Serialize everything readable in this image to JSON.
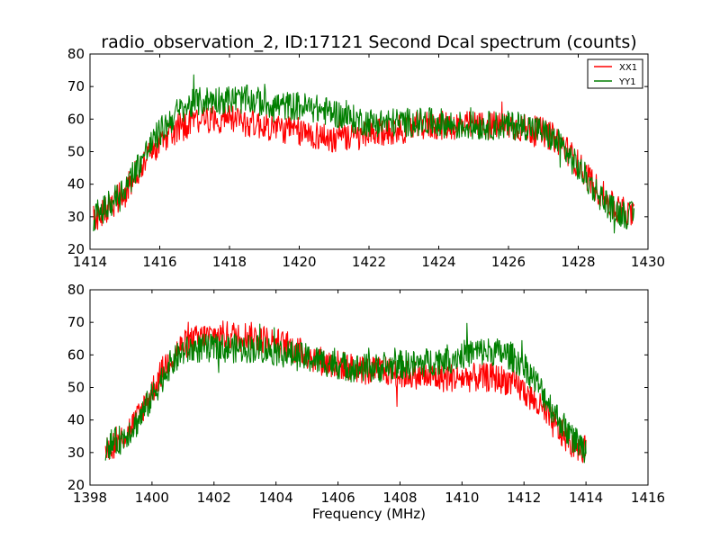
{
  "figure": {
    "title": "radio_observation_2, ID:17121 Second Dcal spectrum (counts)"
  },
  "legend": {
    "placement": "upper-right",
    "entries": [
      "XX1",
      "YY1"
    ]
  },
  "colors": {
    "XX1": "#ff0000",
    "YY1": "#007f00"
  },
  "chart_data": [
    {
      "type": "line",
      "title": "radio_observation_2, ID:17121 Second Dcal spectrum (counts)",
      "xlabel": "",
      "ylabel": "",
      "xlim": [
        1414,
        1430
      ],
      "ylim": [
        20,
        80
      ],
      "xticks": [
        "1414",
        "1416",
        "1418",
        "1420",
        "1422",
        "1424",
        "1426",
        "1428",
        "1430"
      ],
      "yticks": [
        "20",
        "30",
        "40",
        "50",
        "60",
        "70",
        "80"
      ],
      "grid": false,
      "legend": "upper-right",
      "series": [
        {
          "name": "XX1",
          "color": "#ff0000",
          "x": [
            1414.1,
            1414.5,
            1415.0,
            1415.5,
            1416.0,
            1416.5,
            1417.0,
            1417.5,
            1418.0,
            1418.5,
            1419.0,
            1419.5,
            1420.0,
            1420.5,
            1421.0,
            1421.5,
            1422.0,
            1422.5,
            1423.0,
            1423.5,
            1424.0,
            1424.5,
            1425.0,
            1425.5,
            1426.0,
            1426.5,
            1427.0,
            1427.5,
            1428.0,
            1428.5,
            1429.0,
            1429.6
          ],
          "y": [
            30,
            32,
            38,
            46,
            53,
            57,
            59,
            60,
            60,
            59,
            58,
            57,
            56,
            55,
            54,
            54,
            55,
            56,
            57,
            58,
            58,
            58,
            58,
            58,
            58,
            57,
            56,
            53,
            46,
            39,
            33,
            30
          ]
        },
        {
          "name": "YY1",
          "color": "#007f00",
          "x": [
            1414.1,
            1414.5,
            1415.0,
            1415.5,
            1416.0,
            1416.5,
            1417.0,
            1417.5,
            1418.0,
            1418.5,
            1419.0,
            1419.5,
            1420.0,
            1420.5,
            1421.0,
            1421.5,
            1422.0,
            1422.5,
            1423.0,
            1423.5,
            1424.0,
            1424.5,
            1425.0,
            1425.5,
            1426.0,
            1426.5,
            1427.0,
            1427.5,
            1428.0,
            1428.5,
            1429.0,
            1429.6
          ],
          "y": [
            30,
            33,
            39,
            48,
            56,
            62,
            65,
            66,
            66,
            66,
            65,
            64,
            64,
            63,
            62,
            60,
            59,
            59,
            59,
            59,
            59,
            58,
            58,
            58,
            58,
            58,
            56,
            52,
            45,
            38,
            32,
            30
          ]
        }
      ]
    },
    {
      "type": "line",
      "title": "",
      "xlabel": "Frequency (MHz)",
      "ylabel": "",
      "xlim": [
        1398,
        1416
      ],
      "ylim": [
        20,
        80
      ],
      "xticks": [
        "1398",
        "1400",
        "1402",
        "1404",
        "1406",
        "1408",
        "1410",
        "1412",
        "1414",
        "1416"
      ],
      "yticks": [
        "20",
        "30",
        "40",
        "50",
        "60",
        "70",
        "80"
      ],
      "grid": false,
      "series": [
        {
          "name": "XX1",
          "color": "#ff0000",
          "x": [
            1398.5,
            1399.0,
            1399.5,
            1400.0,
            1400.5,
            1401.0,
            1401.5,
            1402.0,
            1402.5,
            1403.0,
            1403.5,
            1404.0,
            1404.5,
            1405.0,
            1405.5,
            1406.0,
            1406.5,
            1407.0,
            1407.5,
            1408.0,
            1408.5,
            1409.0,
            1409.5,
            1410.0,
            1410.5,
            1411.0,
            1411.5,
            1412.0,
            1412.5,
            1413.0,
            1413.5,
            1414.0
          ],
          "y": [
            31,
            34,
            40,
            49,
            58,
            63,
            65,
            66,
            66,
            66,
            65,
            64,
            62,
            60,
            58,
            57,
            56,
            55,
            55,
            54,
            54,
            53,
            53,
            53,
            53,
            53,
            52,
            49,
            44,
            38,
            33,
            31
          ]
        },
        {
          "name": "YY1",
          "color": "#007f00",
          "x": [
            1398.5,
            1399.0,
            1399.5,
            1400.0,
            1400.5,
            1401.0,
            1401.5,
            1402.0,
            1402.5,
            1403.0,
            1403.5,
            1404.0,
            1404.5,
            1405.0,
            1405.5,
            1406.0,
            1406.5,
            1407.0,
            1407.5,
            1408.0,
            1408.5,
            1409.0,
            1409.5,
            1410.0,
            1410.5,
            1411.0,
            1411.5,
            1412.0,
            1412.5,
            1413.0,
            1413.5,
            1414.0
          ],
          "y": [
            32,
            34,
            39,
            47,
            56,
            61,
            62,
            62,
            62,
            62,
            62,
            61,
            60,
            59,
            58,
            57,
            56,
            56,
            56,
            57,
            57,
            58,
            59,
            60,
            61,
            61,
            60,
            57,
            50,
            42,
            35,
            31
          ]
        }
      ]
    }
  ]
}
